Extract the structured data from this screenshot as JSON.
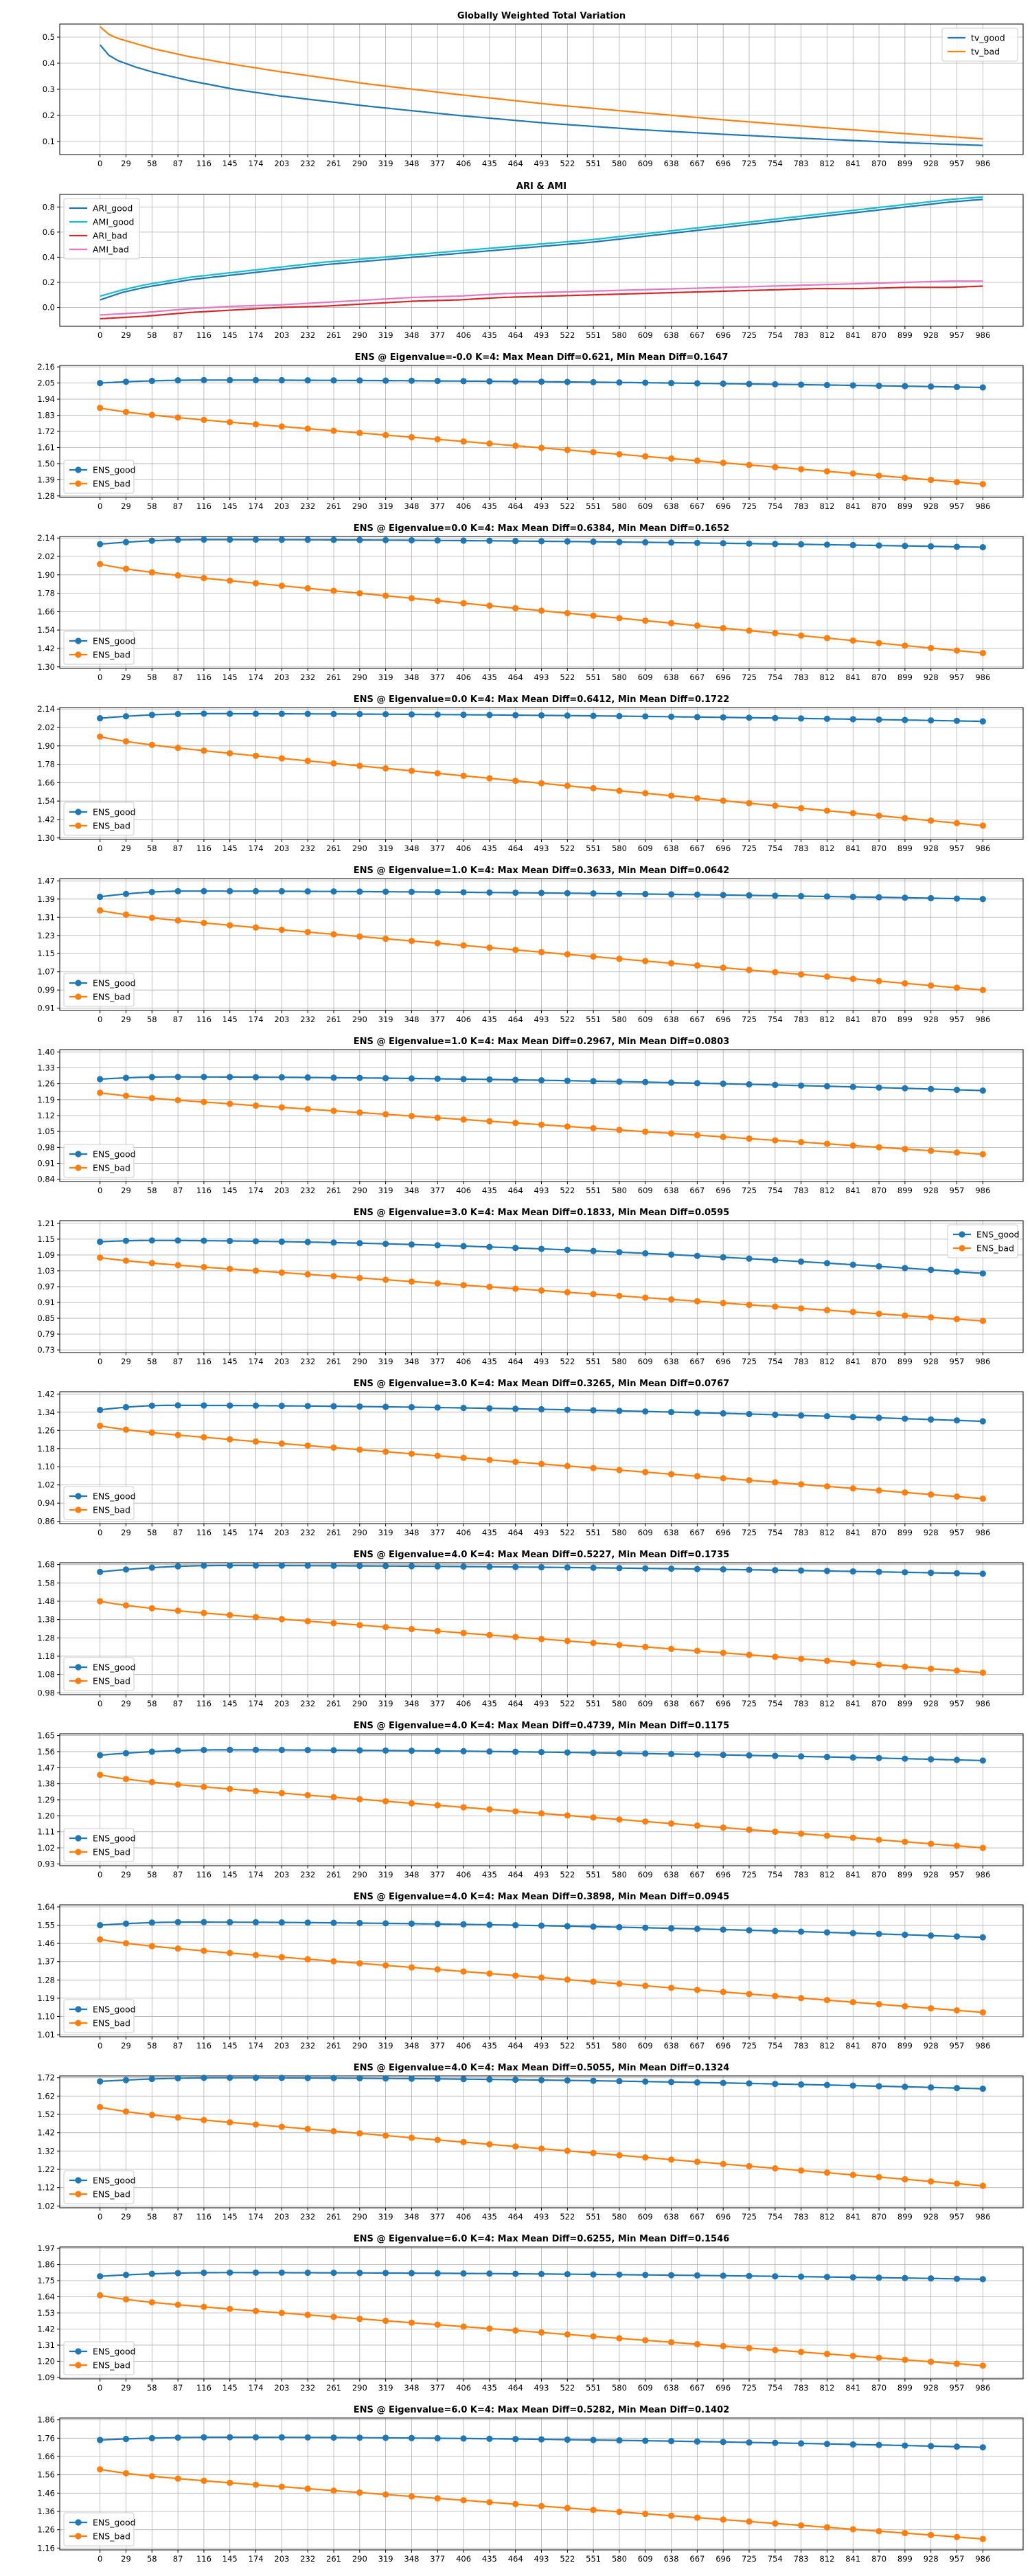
{
  "chart_data": [
    {
      "type": "line",
      "title": "Globally Weighted Total Variation",
      "ylim": [
        0.05,
        0.55
      ],
      "yticks": [
        "0.1",
        "0.2",
        "0.3",
        "0.4",
        "0.5"
      ],
      "grid": true,
      "legend": "top-right",
      "markers": false,
      "series": [
        {
          "name": "tv_good",
          "color": "#1f77b4",
          "x": [
            0,
            10,
            20,
            40,
            60,
            100,
            150,
            200,
            300,
            400,
            500,
            600,
            700,
            800,
            900,
            986
          ],
          "values": [
            0.47,
            0.43,
            0.41,
            0.385,
            0.365,
            0.333,
            0.3,
            0.275,
            0.235,
            0.2,
            0.17,
            0.146,
            0.127,
            0.11,
            0.095,
            0.085
          ]
        },
        {
          "name": "tv_bad",
          "color": "#ff7f0e",
          "x": [
            0,
            10,
            20,
            40,
            60,
            100,
            150,
            200,
            300,
            400,
            500,
            600,
            700,
            800,
            900,
            986
          ],
          "values": [
            0.54,
            0.51,
            0.495,
            0.475,
            0.455,
            0.425,
            0.395,
            0.368,
            0.32,
            0.28,
            0.243,
            0.212,
            0.182,
            0.155,
            0.13,
            0.11
          ]
        }
      ]
    },
    {
      "type": "line",
      "title": "ARI & AMI",
      "ylim": [
        -0.15,
        0.9
      ],
      "yticks": [
        "0.0",
        "0.2",
        "0.4",
        "0.6",
        "0.8"
      ],
      "grid": true,
      "legend": "top-left",
      "markers": false,
      "series": [
        {
          "name": "ARI_good",
          "color": "#1f77b4",
          "x": [
            0,
            25,
            50,
            100,
            150,
            200,
            250,
            300,
            350,
            400,
            450,
            500,
            550,
            600,
            650,
            700,
            750,
            800,
            850,
            900,
            950,
            986
          ],
          "values": [
            0.06,
            0.12,
            0.16,
            0.22,
            0.26,
            0.3,
            0.34,
            0.37,
            0.4,
            0.43,
            0.46,
            0.49,
            0.52,
            0.56,
            0.6,
            0.64,
            0.68,
            0.72,
            0.76,
            0.8,
            0.84,
            0.86
          ]
        },
        {
          "name": "AMI_good",
          "color": "#17becf",
          "x": [
            0,
            25,
            50,
            100,
            150,
            200,
            250,
            300,
            350,
            400,
            450,
            500,
            550,
            600,
            650,
            700,
            750,
            800,
            850,
            900,
            950,
            986
          ],
          "values": [
            0.09,
            0.14,
            0.18,
            0.24,
            0.28,
            0.32,
            0.36,
            0.39,
            0.42,
            0.45,
            0.48,
            0.51,
            0.54,
            0.58,
            0.62,
            0.66,
            0.7,
            0.74,
            0.78,
            0.82,
            0.86,
            0.88
          ]
        },
        {
          "name": "ARI_bad",
          "color": "#d62728",
          "x": [
            0,
            50,
            100,
            150,
            200,
            250,
            300,
            350,
            400,
            450,
            500,
            550,
            600,
            650,
            700,
            750,
            800,
            850,
            900,
            950,
            986
          ],
          "values": [
            -0.09,
            -0.07,
            -0.04,
            -0.02,
            0.0,
            0.01,
            0.03,
            0.05,
            0.06,
            0.08,
            0.09,
            0.1,
            0.11,
            0.12,
            0.13,
            0.14,
            0.15,
            0.15,
            0.16,
            0.16,
            0.17
          ]
        },
        {
          "name": "AMI_bad",
          "color": "#e377c2",
          "x": [
            0,
            50,
            100,
            150,
            200,
            250,
            300,
            350,
            400,
            450,
            500,
            550,
            600,
            650,
            700,
            750,
            800,
            850,
            900,
            950,
            986
          ],
          "values": [
            -0.06,
            -0.04,
            -0.01,
            0.01,
            0.02,
            0.04,
            0.06,
            0.08,
            0.09,
            0.11,
            0.12,
            0.13,
            0.14,
            0.15,
            0.16,
            0.17,
            0.18,
            0.19,
            0.2,
            0.21,
            0.21
          ]
        }
      ]
    },
    {
      "type": "line",
      "title": "ENS @ Eigenvalue=-0.0 K=4: Max Mean Diff=0.621, Min Mean Diff=0.1647",
      "ylim": [
        1.27,
        2.17
      ],
      "yticks": [
        "1.28",
        "1.39",
        "1.50",
        "1.61",
        "1.72",
        "1.83",
        "1.94",
        "2.05",
        "2.16"
      ],
      "grid": true,
      "legend": "bottom-left",
      "markers": true,
      "curve": [
        0.05,
        0.12
      ],
      "series": [
        {
          "name": "ENS_good",
          "color": "#1f77b4",
          "start": 2.05,
          "peak": 2.07,
          "end": 2.02
        },
        {
          "name": "ENS_bad",
          "color": "#ff7f0e",
          "start": 1.88,
          "end": 1.36
        }
      ]
    },
    {
      "type": "line",
      "title": "ENS @ Eigenvalue=0.0 K=4: Max Mean Diff=0.6384, Min Mean Diff=0.1652",
      "ylim": [
        1.29,
        2.15
      ],
      "yticks": [
        "1.30",
        "1.42",
        "1.54",
        "1.66",
        "1.78",
        "1.90",
        "2.02",
        "2.14"
      ],
      "grid": true,
      "legend": "bottom-left",
      "markers": true,
      "curve": [
        0.05,
        0.12
      ],
      "series": [
        {
          "name": "ENS_good",
          "color": "#1f77b4",
          "start": 2.1,
          "peak": 2.13,
          "end": 2.08
        },
        {
          "name": "ENS_bad",
          "color": "#ff7f0e",
          "start": 1.97,
          "end": 1.39
        }
      ]
    },
    {
      "type": "line",
      "title": "ENS @ Eigenvalue=0.0 K=4: Max Mean Diff=0.6412, Min Mean Diff=0.1722",
      "ylim": [
        1.29,
        2.15
      ],
      "yticks": [
        "1.30",
        "1.42",
        "1.54",
        "1.66",
        "1.78",
        "1.90",
        "2.02",
        "2.14"
      ],
      "grid": true,
      "legend": "bottom-left",
      "markers": true,
      "curve": [
        0.05,
        0.12
      ],
      "series": [
        {
          "name": "ENS_good",
          "color": "#1f77b4",
          "start": 2.08,
          "peak": 2.11,
          "end": 2.06
        },
        {
          "name": "ENS_bad",
          "color": "#ff7f0e",
          "start": 1.96,
          "end": 1.38
        }
      ]
    },
    {
      "type": "line",
      "title": "ENS @ Eigenvalue=1.0 K=4: Max Mean Diff=0.3633, Min Mean Diff=0.0642",
      "ylim": [
        0.9,
        1.48
      ],
      "yticks": [
        "0.91",
        "0.99",
        "1.07",
        "1.15",
        "1.23",
        "1.31",
        "1.39",
        "1.47"
      ],
      "grid": true,
      "legend": "bottom-left",
      "markers": true,
      "curve": [
        0.05,
        0.1
      ],
      "series": [
        {
          "name": "ENS_good",
          "color": "#1f77b4",
          "start": 1.4,
          "peak": 1.425,
          "end": 1.39
        },
        {
          "name": "ENS_bad",
          "color": "#ff7f0e",
          "start": 1.34,
          "end": 0.99
        }
      ]
    },
    {
      "type": "line",
      "title": "ENS @ Eigenvalue=1.0 K=4: Max Mean Diff=0.2967, Min Mean Diff=0.0803",
      "ylim": [
        0.83,
        1.41
      ],
      "yticks": [
        "0.84",
        "0.91",
        "0.98",
        "1.05",
        "1.12",
        "1.19",
        "1.26",
        "1.33",
        "1.40"
      ],
      "grid": true,
      "legend": "bottom-left",
      "markers": true,
      "curve": [
        0.04,
        0.08
      ],
      "series": [
        {
          "name": "ENS_good",
          "color": "#1f77b4",
          "start": 1.28,
          "peak": 1.29,
          "end": 1.23
        },
        {
          "name": "ENS_bad",
          "color": "#ff7f0e",
          "start": 1.22,
          "end": 0.95
        }
      ]
    },
    {
      "type": "line",
      "title": "ENS @ Eigenvalue=3.0 K=4: Max Mean Diff=0.1833, Min Mean Diff=0.0595",
      "ylim": [
        0.72,
        1.22
      ],
      "yticks": [
        "0.73",
        "0.79",
        "0.85",
        "0.91",
        "0.97",
        "1.03",
        "1.09",
        "1.15",
        "1.21"
      ],
      "grid": true,
      "legend": "top-right",
      "markers": true,
      "curve": [
        0.04,
        0.06
      ],
      "series": [
        {
          "name": "ENS_good",
          "color": "#1f77b4",
          "start": 1.14,
          "peak": 1.145,
          "end": 1.02
        },
        {
          "name": "ENS_bad",
          "color": "#ff7f0e",
          "start": 1.08,
          "end": 0.84
        }
      ]
    },
    {
      "type": "line",
      "title": "ENS @ Eigenvalue=3.0 K=4: Max Mean Diff=0.3265, Min Mean Diff=0.0767",
      "ylim": [
        0.85,
        1.43
      ],
      "yticks": [
        "0.86",
        "0.94",
        "1.02",
        "1.10",
        "1.18",
        "1.26",
        "1.34",
        "1.42"
      ],
      "grid": true,
      "legend": "bottom-left",
      "markers": true,
      "curve": [
        0.05,
        0.08
      ],
      "series": [
        {
          "name": "ENS_good",
          "color": "#1f77b4",
          "start": 1.35,
          "peak": 1.37,
          "end": 1.3
        },
        {
          "name": "ENS_bad",
          "color": "#ff7f0e",
          "start": 1.28,
          "end": 0.96
        }
      ]
    },
    {
      "type": "line",
      "title": "ENS @ Eigenvalue=4.0 K=4: Max Mean Diff=0.5227, Min Mean Diff=0.1735",
      "ylim": [
        0.97,
        1.69
      ],
      "yticks": [
        "0.98",
        "1.08",
        "1.18",
        "1.28",
        "1.38",
        "1.48",
        "1.58",
        "1.68"
      ],
      "grid": true,
      "legend": "bottom-left",
      "markers": true,
      "curve": [
        0.06,
        0.14
      ],
      "series": [
        {
          "name": "ENS_good",
          "color": "#1f77b4",
          "start": 1.64,
          "peak": 1.675,
          "end": 1.63
        },
        {
          "name": "ENS_bad",
          "color": "#ff7f0e",
          "start": 1.48,
          "end": 1.09
        }
      ]
    },
    {
      "type": "line",
      "title": "ENS @ Eigenvalue=4.0 K=4: Max Mean Diff=0.4739, Min Mean Diff=0.1175",
      "ylim": [
        0.92,
        1.66
      ],
      "yticks": [
        "0.93",
        "1.02",
        "1.11",
        "1.20",
        "1.29",
        "1.38",
        "1.47",
        "1.56",
        "1.65"
      ],
      "grid": true,
      "legend": "bottom-left",
      "markers": true,
      "curve": [
        0.06,
        0.14
      ],
      "series": [
        {
          "name": "ENS_good",
          "color": "#1f77b4",
          "start": 1.54,
          "peak": 1.57,
          "end": 1.51
        },
        {
          "name": "ENS_bad",
          "color": "#ff7f0e",
          "start": 1.43,
          "end": 1.02
        }
      ]
    },
    {
      "type": "line",
      "title": "ENS @ Eigenvalue=4.0 K=4: Max Mean Diff=0.3898, Min Mean Diff=0.0945",
      "ylim": [
        1.0,
        1.65
      ],
      "yticks": [
        "1.01",
        "1.10",
        "1.19",
        "1.28",
        "1.37",
        "1.46",
        "1.55",
        "1.64"
      ],
      "grid": true,
      "legend": "bottom-left",
      "markers": true,
      "curve": [
        0.05,
        0.1
      ],
      "series": [
        {
          "name": "ENS_good",
          "color": "#1f77b4",
          "start": 1.55,
          "peak": 1.565,
          "end": 1.49
        },
        {
          "name": "ENS_bad",
          "color": "#ff7f0e",
          "start": 1.48,
          "end": 1.12
        }
      ]
    },
    {
      "type": "line",
      "title": "ENS @ Eigenvalue=4.0 K=4: Max Mean Diff=0.5055, Min Mean Diff=0.1324",
      "ylim": [
        1.01,
        1.73
      ],
      "yticks": [
        "1.02",
        "1.12",
        "1.22",
        "1.32",
        "1.42",
        "1.52",
        "1.62",
        "1.72"
      ],
      "grid": true,
      "legend": "bottom-left",
      "markers": true,
      "curve": [
        0.06,
        0.14
      ],
      "series": [
        {
          "name": "ENS_good",
          "color": "#1f77b4",
          "start": 1.7,
          "peak": 1.72,
          "end": 1.66
        },
        {
          "name": "ENS_bad",
          "color": "#ff7f0e",
          "start": 1.56,
          "end": 1.13
        }
      ]
    },
    {
      "type": "line",
      "title": "ENS @ Eigenvalue=6.0 K=4: Max Mean Diff=0.6255, Min Mean Diff=0.1546",
      "ylim": [
        1.08,
        1.98
      ],
      "yticks": [
        "1.09",
        "1.20",
        "1.31",
        "1.42",
        "1.53",
        "1.64",
        "1.75",
        "1.86",
        "1.97"
      ],
      "grid": true,
      "legend": "bottom-left",
      "markers": true,
      "curve": [
        0.06,
        0.14
      ],
      "series": [
        {
          "name": "ENS_good",
          "color": "#1f77b4",
          "start": 1.78,
          "peak": 1.805,
          "end": 1.76
        },
        {
          "name": "ENS_bad",
          "color": "#ff7f0e",
          "start": 1.65,
          "end": 1.17
        }
      ]
    },
    {
      "type": "line",
      "title": "ENS @ Eigenvalue=6.0 K=4: Max Mean Diff=0.5282, Min Mean Diff=0.1402",
      "ylim": [
        1.15,
        1.87
      ],
      "yticks": [
        "1.16",
        "1.26",
        "1.36",
        "1.46",
        "1.56",
        "1.66",
        "1.76",
        "1.86"
      ],
      "grid": true,
      "legend": "bottom-left",
      "markers": true,
      "curve": [
        0.06,
        0.14
      ],
      "series": [
        {
          "name": "ENS_good",
          "color": "#1f77b4",
          "start": 1.75,
          "peak": 1.765,
          "end": 1.71
        },
        {
          "name": "ENS_bad",
          "color": "#ff7f0e",
          "start": 1.59,
          "end": 1.21
        }
      ]
    }
  ],
  "x_ticks": [
    0,
    29,
    58,
    87,
    116,
    145,
    174,
    203,
    232,
    261,
    290,
    319,
    348,
    377,
    406,
    435,
    464,
    493,
    522,
    551,
    580,
    609,
    638,
    667,
    696,
    725,
    754,
    783,
    812,
    841,
    870,
    899,
    928,
    957,
    986
  ],
  "marker_every": 29,
  "xlim": [
    -45,
    1031
  ]
}
